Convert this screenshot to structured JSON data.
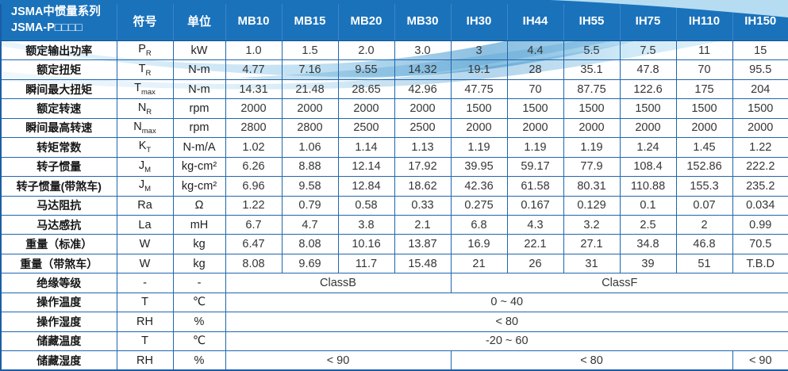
{
  "table": {
    "corner": {
      "line1": "JSMA中惯量系列",
      "line2": "JSMA-P□□□□"
    },
    "columns": {
      "symbol": "符号",
      "unit": "单位",
      "models": [
        "MB10",
        "MB15",
        "MB20",
        "MB30",
        "IH30",
        "IH44",
        "IH55",
        "IH75",
        "IH110",
        "IH150"
      ]
    },
    "rows": [
      {
        "label": "额定输出功率",
        "symbol": "P",
        "symbol_sub": "R",
        "unit": "kW",
        "values": [
          "1.0",
          "1.5",
          "2.0",
          "3.0",
          "3",
          "4.4",
          "5.5",
          "7.5",
          "11",
          "15"
        ]
      },
      {
        "label": "额定扭矩",
        "symbol": "T",
        "symbol_sub": "R",
        "unit": "N-m",
        "values": [
          "4.77",
          "7.16",
          "9.55",
          "14.32",
          "19.1",
          "28",
          "35.1",
          "47.8",
          "70",
          "95.5"
        ]
      },
      {
        "label": "瞬间最大扭矩",
        "symbol": "T",
        "symbol_sub": "max",
        "unit": "N-m",
        "values": [
          "14.31",
          "21.48",
          "28.65",
          "42.96",
          "47.75",
          "70",
          "87.75",
          "122.6",
          "175",
          "204"
        ]
      },
      {
        "label": "额定转速",
        "symbol": "N",
        "symbol_sub": "R",
        "unit": "rpm",
        "values": [
          "2000",
          "2000",
          "2000",
          "2000",
          "1500",
          "1500",
          "1500",
          "1500",
          "1500",
          "1500"
        ]
      },
      {
        "label": "瞬间最高转速",
        "symbol": "N",
        "symbol_sub": "max",
        "unit": "rpm",
        "values": [
          "2800",
          "2800",
          "2500",
          "2500",
          "2000",
          "2000",
          "2000",
          "2000",
          "2000",
          "2000"
        ]
      },
      {
        "label": "转矩常数",
        "symbol": "K",
        "symbol_sub": "T",
        "unit": "N-m/A",
        "values": [
          "1.02",
          "1.06",
          "1.14",
          "1.13",
          "1.19",
          "1.19",
          "1.19",
          "1.24",
          "1.45",
          "1.22"
        ]
      },
      {
        "label": "转子惯量",
        "symbol": "J",
        "symbol_sub": "M",
        "unit": "kg-cm²",
        "values": [
          "6.26",
          "8.88",
          "12.14",
          "17.92",
          "39.95",
          "59.17",
          "77.9",
          "108.4",
          "152.86",
          "222.2"
        ]
      },
      {
        "label": "转子惯量(带煞车)",
        "symbol": "J",
        "symbol_sub": "M",
        "unit": "kg-cm²",
        "values": [
          "6.96",
          "9.58",
          "12.84",
          "18.62",
          "42.36",
          "61.58",
          "80.31",
          "110.88",
          "155.3",
          "235.2"
        ]
      },
      {
        "label": "马达阻抗",
        "symbol": "Ra",
        "symbol_sub": "",
        "unit": "Ω",
        "values": [
          "1.22",
          "0.79",
          "0.58",
          "0.33",
          "0.275",
          "0.167",
          "0.129",
          "0.1",
          "0.07",
          "0.034"
        ]
      },
      {
        "label": "马达感抗",
        "symbol": "La",
        "symbol_sub": "",
        "unit": "mH",
        "values": [
          "6.7",
          "4.7",
          "3.8",
          "2.1",
          "6.8",
          "4.3",
          "3.2",
          "2.5",
          "2",
          "0.99"
        ]
      },
      {
        "label": "重量（标准）",
        "symbol": "W",
        "symbol_sub": "",
        "unit": "kg",
        "values": [
          "6.47",
          "8.08",
          "10.16",
          "13.87",
          "16.9",
          "22.1",
          "27.1",
          "34.8",
          "46.8",
          "70.5"
        ]
      },
      {
        "label": "重量（带煞车）",
        "symbol": "W",
        "symbol_sub": "",
        "unit": "kg",
        "values": [
          "8.08",
          "9.69",
          "11.7",
          "15.48",
          "21",
          "26",
          "31",
          "39",
          "51",
          "T.B.D"
        ]
      },
      {
        "label": "绝缘等级",
        "symbol": "-",
        "symbol_sub": "",
        "unit": "-",
        "spans": [
          {
            "text": "ClassB",
            "cols": 4
          },
          {
            "text": "ClassF",
            "cols": 6
          }
        ]
      },
      {
        "label": "操作温度",
        "symbol": "T",
        "symbol_sub": "",
        "unit": "℃",
        "spans": [
          {
            "text": "0 ~ 40",
            "cols": 10
          }
        ]
      },
      {
        "label": "操作湿度",
        "symbol": "RH",
        "symbol_sub": "",
        "unit": "%",
        "spans": [
          {
            "text": "< 80",
            "cols": 10
          }
        ]
      },
      {
        "label": "储藏温度",
        "symbol": "T",
        "symbol_sub": "",
        "unit": "℃",
        "spans": [
          {
            "text": "-20 ~ 60",
            "cols": 10
          }
        ]
      },
      {
        "label": "储藏湿度",
        "symbol": "RH",
        "symbol_sub": "",
        "unit": "%",
        "spans": [
          {
            "text": "< 90",
            "cols": 4
          },
          {
            "text": "< 80",
            "cols": 5
          },
          {
            "text": "< 90",
            "cols": 1
          }
        ]
      }
    ]
  },
  "colors": {
    "header_bg": "#1a72bb",
    "grid_border": "#2066ad",
    "outer_border": "#1b5ca6",
    "wave_light": "#cfe9f7",
    "wave_mid": "#8cc6e8",
    "wave_deep": "#2f8cc9",
    "label_text": "#161616",
    "value_text": "#353535"
  }
}
